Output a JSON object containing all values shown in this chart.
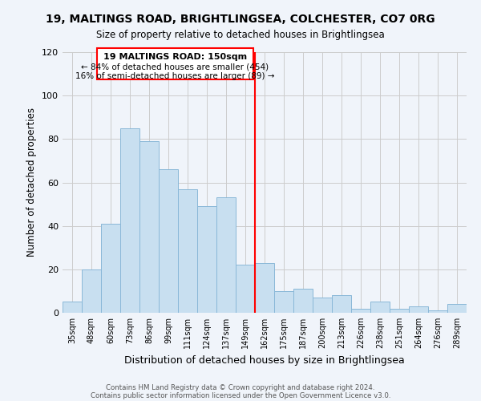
{
  "title": "19, MALTINGS ROAD, BRIGHTLINGSEA, COLCHESTER, CO7 0RG",
  "subtitle": "Size of property relative to detached houses in Brightlingsea",
  "xlabel": "Distribution of detached houses by size in Brightlingsea",
  "ylabel": "Number of detached properties",
  "bar_color": "#c8dff0",
  "bar_edge_color": "#8ab8d8",
  "categories": [
    "35sqm",
    "48sqm",
    "60sqm",
    "73sqm",
    "86sqm",
    "99sqm",
    "111sqm",
    "124sqm",
    "137sqm",
    "149sqm",
    "162sqm",
    "175sqm",
    "187sqm",
    "200sqm",
    "213sqm",
    "226sqm",
    "238sqm",
    "251sqm",
    "264sqm",
    "276sqm",
    "289sqm"
  ],
  "values": [
    5,
    20,
    41,
    85,
    79,
    66,
    57,
    49,
    53,
    22,
    23,
    10,
    11,
    7,
    8,
    2,
    5,
    2,
    3,
    1,
    4
  ],
  "vline_x": 9.5,
  "vline_color": "red",
  "annotation_title": "19 MALTINGS ROAD: 150sqm",
  "annotation_line1": "← 84% of detached houses are smaller (454)",
  "annotation_line2": "16% of semi-detached houses are larger (89) →",
  "ylim": [
    0,
    120
  ],
  "yticks": [
    0,
    20,
    40,
    60,
    80,
    100,
    120
  ],
  "background_color": "#f0f4fa",
  "grid_color": "#cccccc",
  "footer_line1": "Contains HM Land Registry data © Crown copyright and database right 2024.",
  "footer_line2": "Contains public sector information licensed under the Open Government Licence v3.0."
}
